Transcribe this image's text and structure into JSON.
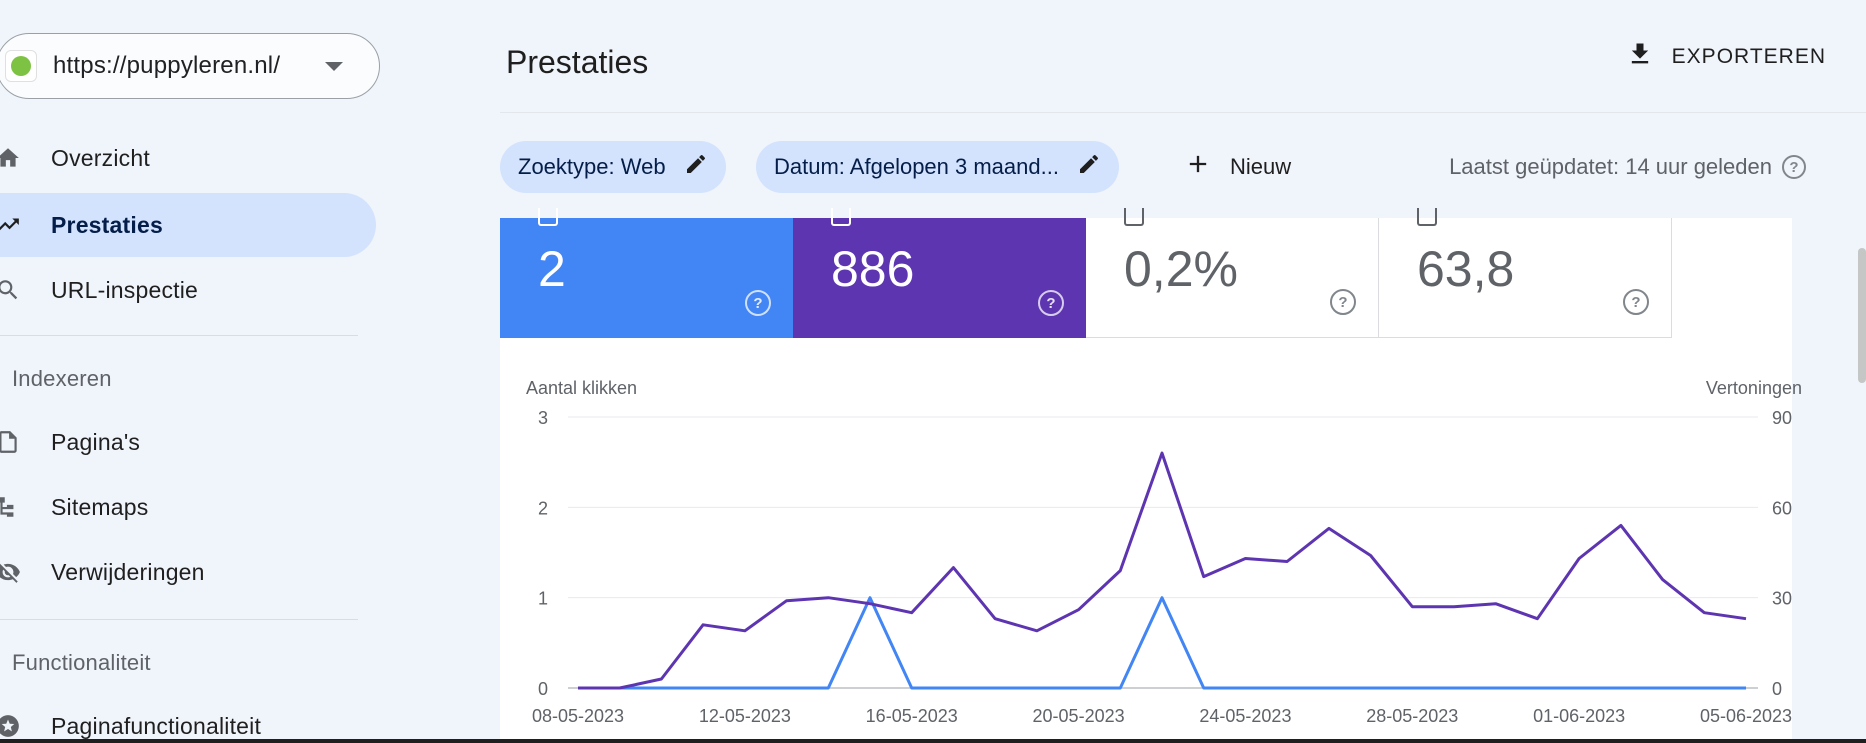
{
  "property": {
    "url": "https://puppyleren.nl/"
  },
  "nav": {
    "overzicht": "Overzicht",
    "prestaties": "Prestaties",
    "url_inspectie": "URL-inspectie",
    "section_indexeren": "Indexeren",
    "paginas": "Pagina's",
    "sitemaps": "Sitemaps",
    "verwijderingen": "Verwijderingen",
    "section_functionaliteit": "Functionaliteit",
    "paginafunctionaliteit": "Paginafunctionaliteit"
  },
  "header": {
    "title": "Prestaties",
    "export_label": "EXPORTEREN"
  },
  "filters": {
    "zoektype": "Zoektype: Web",
    "datum": "Datum: Afgelopen 3 maand...",
    "new_label": "Nieuw",
    "last_updated": "Laatst geüpdatet: 14 uur geleden"
  },
  "metrics": {
    "clicks": "2",
    "impressions": "886",
    "ctr": "0,2%",
    "position": "63,8"
  },
  "colors": {
    "clicks": "#4285f4",
    "impressions": "#5e35b1",
    "active_nav": "#d3e3fd"
  },
  "chart_data": {
    "type": "line",
    "ylabel_left": "Aantal klikken",
    "ylabel_right": "Vertoningen",
    "y_left_ticks": [
      "3",
      "2",
      "1",
      "0"
    ],
    "y_right_ticks": [
      "90",
      "60",
      "30",
      "0"
    ],
    "ylim_left": [
      0,
      3
    ],
    "ylim_right": [
      0,
      90
    ],
    "x_tick_labels": [
      "08-05-2023",
      "12-05-2023",
      "16-05-2023",
      "20-05-2023",
      "24-05-2023",
      "28-05-2023",
      "01-06-2023",
      "05-06-2023"
    ],
    "x": [
      "08-05-2023",
      "09-05-2023",
      "10-05-2023",
      "11-05-2023",
      "12-05-2023",
      "13-05-2023",
      "14-05-2023",
      "15-05-2023",
      "16-05-2023",
      "17-05-2023",
      "18-05-2023",
      "19-05-2023",
      "20-05-2023",
      "21-05-2023",
      "22-05-2023",
      "23-05-2023",
      "24-05-2023",
      "25-05-2023",
      "26-05-2023",
      "27-05-2023",
      "28-05-2023",
      "29-05-2023",
      "30-05-2023",
      "31-05-2023",
      "01-06-2023",
      "02-06-2023",
      "03-06-2023",
      "04-06-2023",
      "05-06-2023"
    ],
    "series": [
      {
        "axis": "left",
        "color": "#4285f4",
        "values": [
          0,
          0,
          0,
          0,
          0,
          0,
          0,
          1,
          0,
          0,
          0,
          0,
          0,
          0,
          1,
          0,
          0,
          0,
          0,
          0,
          0,
          0,
          0,
          0,
          0,
          0,
          0,
          0,
          0
        ]
      },
      {
        "axis": "right",
        "color": "#5e35b1",
        "values": [
          0,
          0,
          3,
          21,
          19,
          29,
          30,
          28,
          25,
          40,
          23,
          19,
          26,
          39,
          78,
          37,
          43,
          42,
          53,
          44,
          27,
          27,
          28,
          23,
          43,
          54,
          36,
          25,
          23
        ]
      }
    ],
    "grid": true
  }
}
